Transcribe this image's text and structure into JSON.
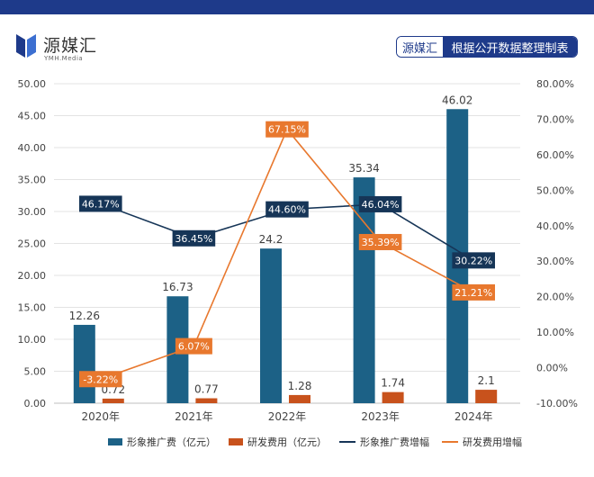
{
  "brand": {
    "name": "源媒汇",
    "sub": "YMH.Media"
  },
  "source": {
    "brand": "源媒汇",
    "text": "根据公开数据整理制表"
  },
  "colors": {
    "bar1": "#1c6186",
    "bar2": "#c8521c",
    "line1": "#163557",
    "line2": "#e8782e",
    "topbar": "#1e3a8a"
  },
  "chart_data": {
    "type": "bar",
    "categories": [
      "2020年",
      "2021年",
      "2022年",
      "2023年",
      "2024年"
    ],
    "series": [
      {
        "name": "形象推广费（亿元）",
        "type": "bar",
        "axis": "left",
        "values": [
          12.26,
          16.73,
          24.2,
          35.34,
          46.02
        ],
        "labels": [
          "12.26",
          "16.73",
          "24.2",
          "35.34",
          "46.02"
        ]
      },
      {
        "name": "研发费用（亿元）",
        "type": "bar",
        "axis": "left",
        "values": [
          0.72,
          0.77,
          1.28,
          1.74,
          2.1
        ],
        "labels": [
          "0.72",
          "0.77",
          "1.28",
          "1.74",
          "2.1"
        ]
      },
      {
        "name": "形象推广费增幅",
        "type": "line",
        "axis": "right",
        "values": [
          46.17,
          36.45,
          44.6,
          46.04,
          30.22
        ],
        "labels": [
          "46.17%",
          "36.45%",
          "44.60%",
          "46.04%",
          "30.22%"
        ]
      },
      {
        "name": "研发费用增幅",
        "type": "line",
        "axis": "right",
        "values": [
          -3.22,
          6.07,
          67.15,
          35.39,
          21.21
        ],
        "labels": [
          "-3.22%",
          "6.07%",
          "67.15%",
          "35.39%",
          "21.21%"
        ]
      }
    ],
    "ylim_left": [
      0,
      50
    ],
    "ylim_right": [
      -10,
      80
    ],
    "yticks_left": [
      "0.00",
      "5.00",
      "10.00",
      "15.00",
      "20.00",
      "25.00",
      "30.00",
      "35.00",
      "40.00",
      "45.00",
      "50.00"
    ],
    "yticks_right": [
      "-10.00%",
      "0.00%",
      "10.00%",
      "20.00%",
      "30.00%",
      "40.00%",
      "50.00%",
      "60.00%",
      "70.00%",
      "80.00%"
    ],
    "grid": true,
    "legend": "bottom"
  }
}
